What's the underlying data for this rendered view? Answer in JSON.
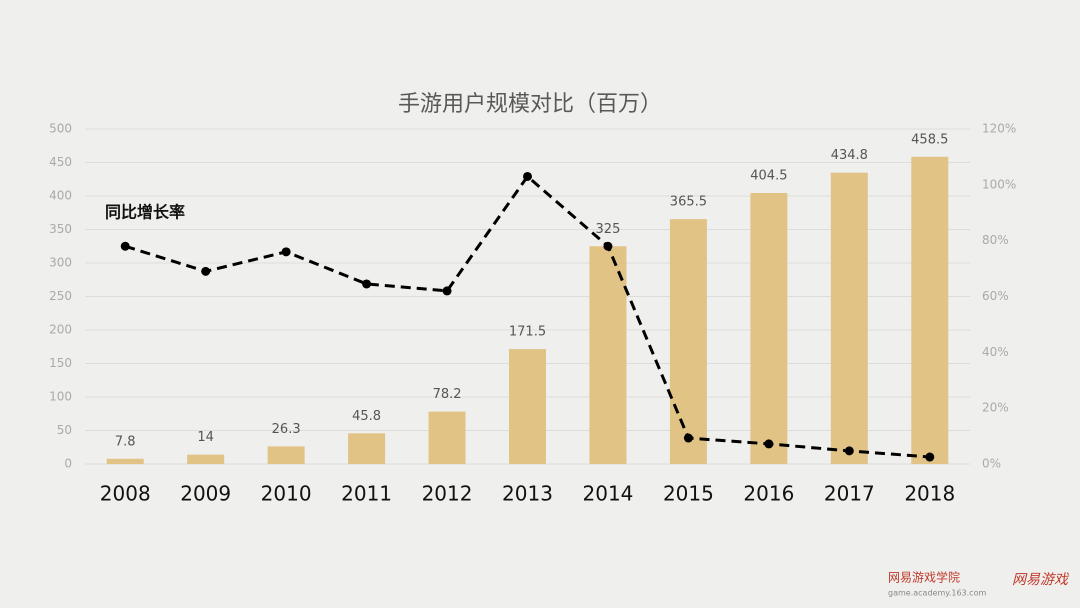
{
  "chart_data": {
    "type": "bar-line",
    "title": "手游用户规模对比（百万）",
    "annotation": "同比增长率",
    "categories": [
      "2008",
      "2009",
      "2010",
      "2011",
      "2012",
      "2013",
      "2014",
      "2015",
      "2016",
      "2017",
      "2018"
    ],
    "series": [
      {
        "type": "bar",
        "color": "#e2c386",
        "values": [
          7.8,
          14,
          26.3,
          45.8,
          78.2,
          171.5,
          325,
          365.5,
          404.5,
          434.8,
          458.5
        ]
      },
      {
        "type": "line",
        "axis": "y2",
        "color": "#000000",
        "values": [
          78,
          69,
          76,
          64.5,
          62,
          103,
          78,
          9.3,
          7.2,
          4.7,
          2.5
        ]
      }
    ],
    "ylim": [
      0,
      500
    ],
    "yticks": [
      0,
      50,
      100,
      150,
      200,
      250,
      300,
      350,
      400,
      450,
      500
    ],
    "y2lim": [
      0,
      120
    ],
    "y2ticks": [
      {
        "value": 0,
        "label": "0%"
      },
      {
        "value": 20,
        "label": "20%"
      },
      {
        "value": 40,
        "label": "40%"
      },
      {
        "value": 60,
        "label": "60%"
      },
      {
        "value": 80,
        "label": "80%"
      },
      {
        "value": 100,
        "label": "100%"
      },
      {
        "value": 120,
        "label": "120%"
      }
    ],
    "grid": true
  },
  "footer": {
    "brand": "网易游戏学院",
    "url": "game.academy.163.com",
    "logo": "网易游戏"
  }
}
